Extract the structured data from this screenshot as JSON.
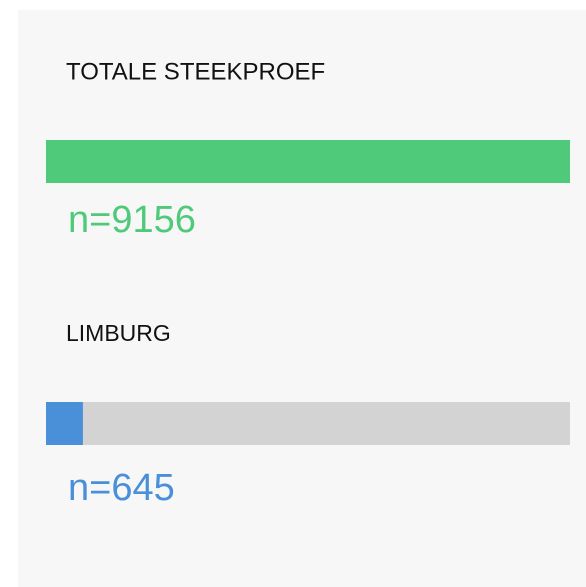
{
  "chart_data": {
    "type": "bar",
    "categories": [
      "TOTALE STEEKPROEF",
      "LIMBURG"
    ],
    "values": [
      9156,
      645
    ],
    "value_labels": [
      "n=9156",
      "n=645"
    ],
    "colors": [
      "#4fca7b",
      "#4a90d9"
    ],
    "track_color": "#d3d3d3"
  }
}
